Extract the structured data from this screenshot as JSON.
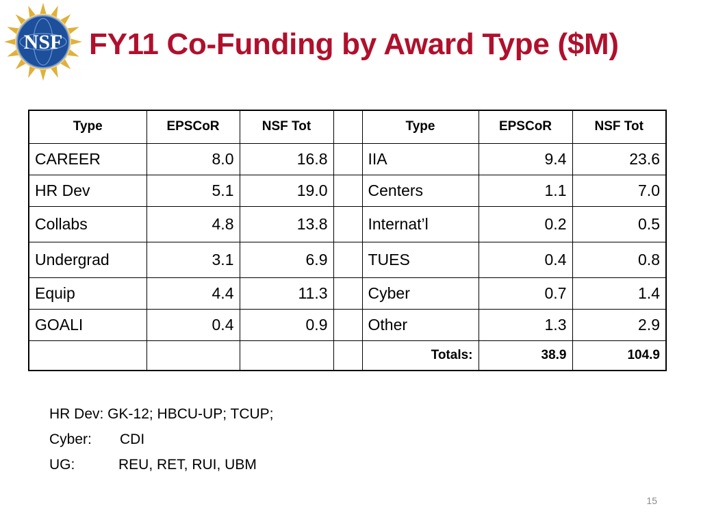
{
  "slide": {
    "title": "FY11 Co-Funding by Award Type ($M)",
    "logo_text": "NSF",
    "page_number": "15"
  },
  "table": {
    "headers": [
      "Type",
      "EPSCoR",
      "NSF Tot",
      "",
      "Type",
      "EPSCoR",
      "NSF Tot"
    ],
    "rows": [
      [
        "CAREER",
        "8.0",
        "16.8",
        "",
        "IIA",
        "9.4",
        "23.6"
      ],
      [
        "HR Dev",
        "5.1",
        "19.0",
        "",
        "Centers",
        "1.1",
        "7.0"
      ],
      [
        "Collabs",
        "4.8",
        "13.8",
        "",
        "Internat’l",
        "0.2",
        "0.5"
      ],
      [
        "Undergrad",
        "3.1",
        "6.9",
        "",
        "TUES",
        "0.4",
        "0.8"
      ],
      [
        "Equip",
        "4.4",
        "11.3",
        "",
        "Cyber",
        "0.7",
        "1.4"
      ],
      [
        "GOALI",
        "0.4",
        "0.9",
        "",
        "Other",
        "1.3",
        "2.9"
      ]
    ],
    "totals": {
      "label": "Totals:",
      "epscor": "38.9",
      "nsf_tot": "104.9"
    }
  },
  "notes": {
    "line1": "HR Dev: GK-12; HBCU-UP; TCUP;",
    "cyber_key": "Cyber:",
    "cyber_value": "CDI",
    "ug_key": "UG:",
    "ug_value": "REU, RET, RUI, UBM"
  },
  "colors": {
    "title": "#b0102c",
    "logo_blue": "#1d4f9a",
    "logo_gold": "#e0b03a"
  }
}
